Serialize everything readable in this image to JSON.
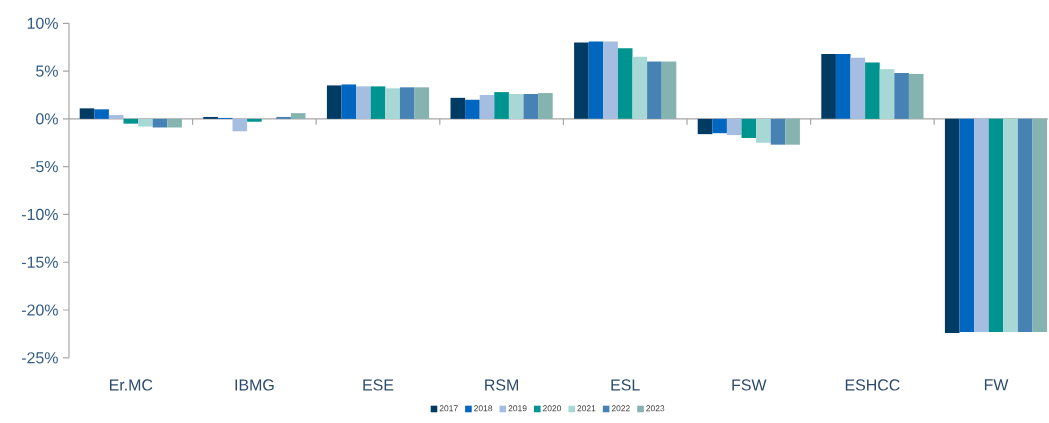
{
  "chart_data": {
    "type": "bar",
    "categories": [
      "Er.MC",
      "IBMG",
      "ESE",
      "RSM",
      "ESL",
      "FSW",
      "ESHCC",
      "FW"
    ],
    "series": [
      {
        "name": "2017",
        "color": "#003b64",
        "values": [
          1.1,
          0.2,
          3.5,
          2.2,
          8.0,
          -1.6,
          6.8,
          -22.4
        ]
      },
      {
        "name": "2018",
        "color": "#0066c0",
        "values": [
          1.0,
          0.1,
          3.6,
          2.0,
          8.1,
          -1.5,
          6.8,
          -22.3
        ]
      },
      {
        "name": "2019",
        "color": "#a4bde0",
        "values": [
          0.4,
          -1.3,
          3.4,
          2.5,
          8.1,
          -1.7,
          6.4,
          -22.3
        ]
      },
      {
        "name": "2020",
        "color": "#009490",
        "values": [
          -0.5,
          -0.3,
          3.4,
          2.8,
          7.4,
          -2.0,
          5.9,
          -22.3
        ]
      },
      {
        "name": "2021",
        "color": "#a8d8d6",
        "values": [
          -0.8,
          0.0,
          3.2,
          2.6,
          6.5,
          -2.5,
          5.2,
          -22.3
        ]
      },
      {
        "name": "2022",
        "color": "#4682b4",
        "values": [
          -0.9,
          0.2,
          3.3,
          2.6,
          6.0,
          -2.7,
          4.8,
          -22.3
        ]
      },
      {
        "name": "2023",
        "color": "#85b3b0",
        "values": [
          -0.9,
          0.6,
          3.3,
          2.7,
          6.0,
          -2.7,
          4.7,
          -22.3
        ]
      }
    ],
    "ylim": [
      -25,
      10
    ],
    "yticks": [
      {
        "value": -25,
        "label": "-25%"
      },
      {
        "value": -20,
        "label": "-20%"
      },
      {
        "value": -15,
        "label": "-15%"
      },
      {
        "value": -10,
        "label": "-10%"
      },
      {
        "value": -5,
        "label": "-5%"
      },
      {
        "value": 0,
        "label": "0%"
      },
      {
        "value": 5,
        "label": "5%"
      },
      {
        "value": 10,
        "label": "10%"
      }
    ],
    "legend": "bottom"
  }
}
